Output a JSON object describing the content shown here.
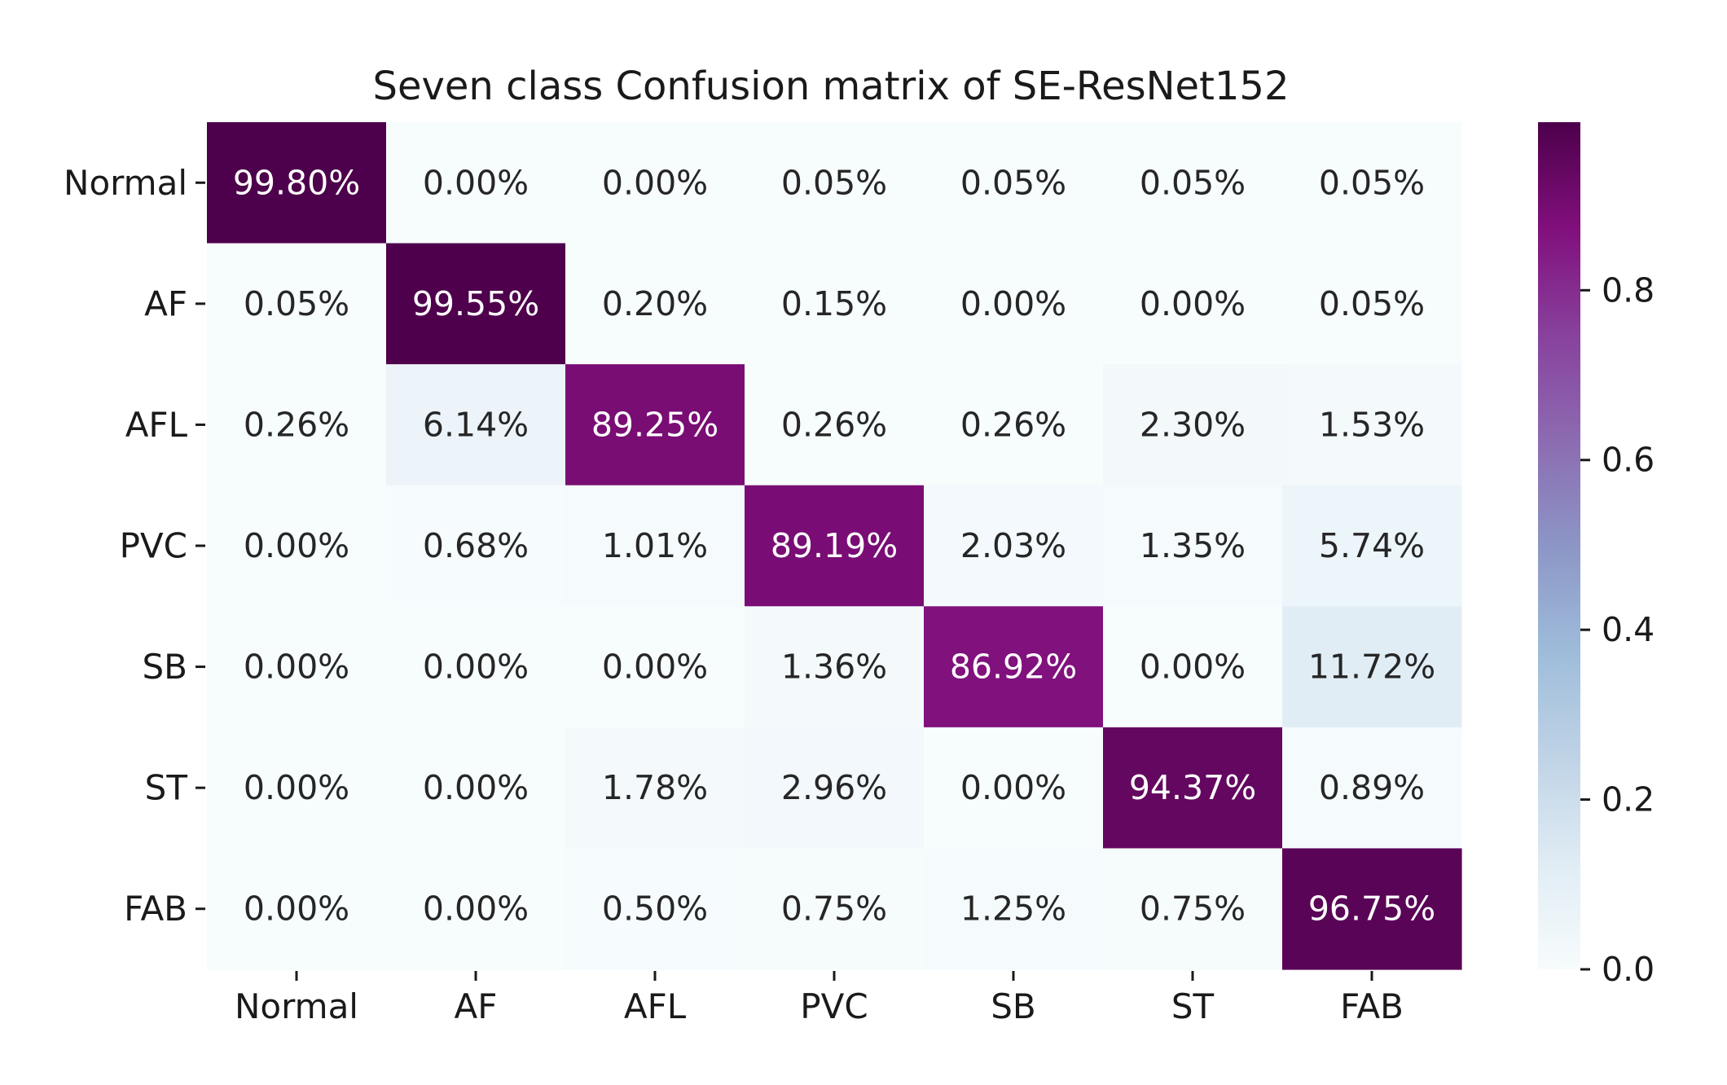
{
  "chart_data": {
    "type": "heatmap",
    "title": "Seven class Confusion matrix of SE-ResNet152",
    "x_categories": [
      "Normal",
      "AF",
      "AFL",
      "PVC",
      "SB",
      "ST",
      "FAB"
    ],
    "y_categories": [
      "Normal",
      "AF",
      "AFL",
      "PVC",
      "SB",
      "ST",
      "FAB"
    ],
    "values": [
      [
        0.998,
        0.0,
        0.0,
        0.0005,
        0.0005,
        0.0005,
        0.0005
      ],
      [
        0.0005,
        0.9955,
        0.002,
        0.0015,
        0.0,
        0.0,
        0.0005
      ],
      [
        0.0026,
        0.0614,
        0.8925,
        0.0026,
        0.0026,
        0.023,
        0.0153
      ],
      [
        0.0,
        0.0068,
        0.0101,
        0.8919,
        0.0203,
        0.0135,
        0.0574
      ],
      [
        0.0,
        0.0,
        0.0,
        0.0136,
        0.8692,
        0.0,
        0.1172
      ],
      [
        0.0,
        0.0,
        0.0178,
        0.0296,
        0.0,
        0.9437,
        0.0089
      ],
      [
        0.0,
        0.0,
        0.005,
        0.0075,
        0.0125,
        0.0075,
        0.9675
      ]
    ],
    "cell_labels": [
      [
        "99.80%",
        "0.00%",
        "0.00%",
        "0.05%",
        "0.05%",
        "0.05%",
        "0.05%"
      ],
      [
        "0.05%",
        "99.55%",
        "0.20%",
        "0.15%",
        "0.00%",
        "0.00%",
        "0.05%"
      ],
      [
        "0.26%",
        "6.14%",
        "89.25%",
        "0.26%",
        "0.26%",
        "2.30%",
        "1.53%"
      ],
      [
        "0.00%",
        "0.68%",
        "1.01%",
        "89.19%",
        "2.03%",
        "1.35%",
        "5.74%"
      ],
      [
        "0.00%",
        "0.00%",
        "0.00%",
        "1.36%",
        "86.92%",
        "0.00%",
        "11.72%"
      ],
      [
        "0.00%",
        "0.00%",
        "1.78%",
        "2.96%",
        "0.00%",
        "94.37%",
        "0.89%"
      ],
      [
        "0.00%",
        "0.00%",
        "0.50%",
        "0.75%",
        "1.25%",
        "0.75%",
        "96.75%"
      ]
    ],
    "colormap": "BuPu",
    "colorbar": {
      "range": [
        0.0,
        0.998
      ],
      "ticks": [
        0.0,
        0.2,
        0.4,
        0.6,
        0.8
      ],
      "tick_labels": [
        "0.0",
        "0.2",
        "0.4",
        "0.6",
        "0.8"
      ]
    },
    "xlabel": "",
    "ylabel": ""
  }
}
